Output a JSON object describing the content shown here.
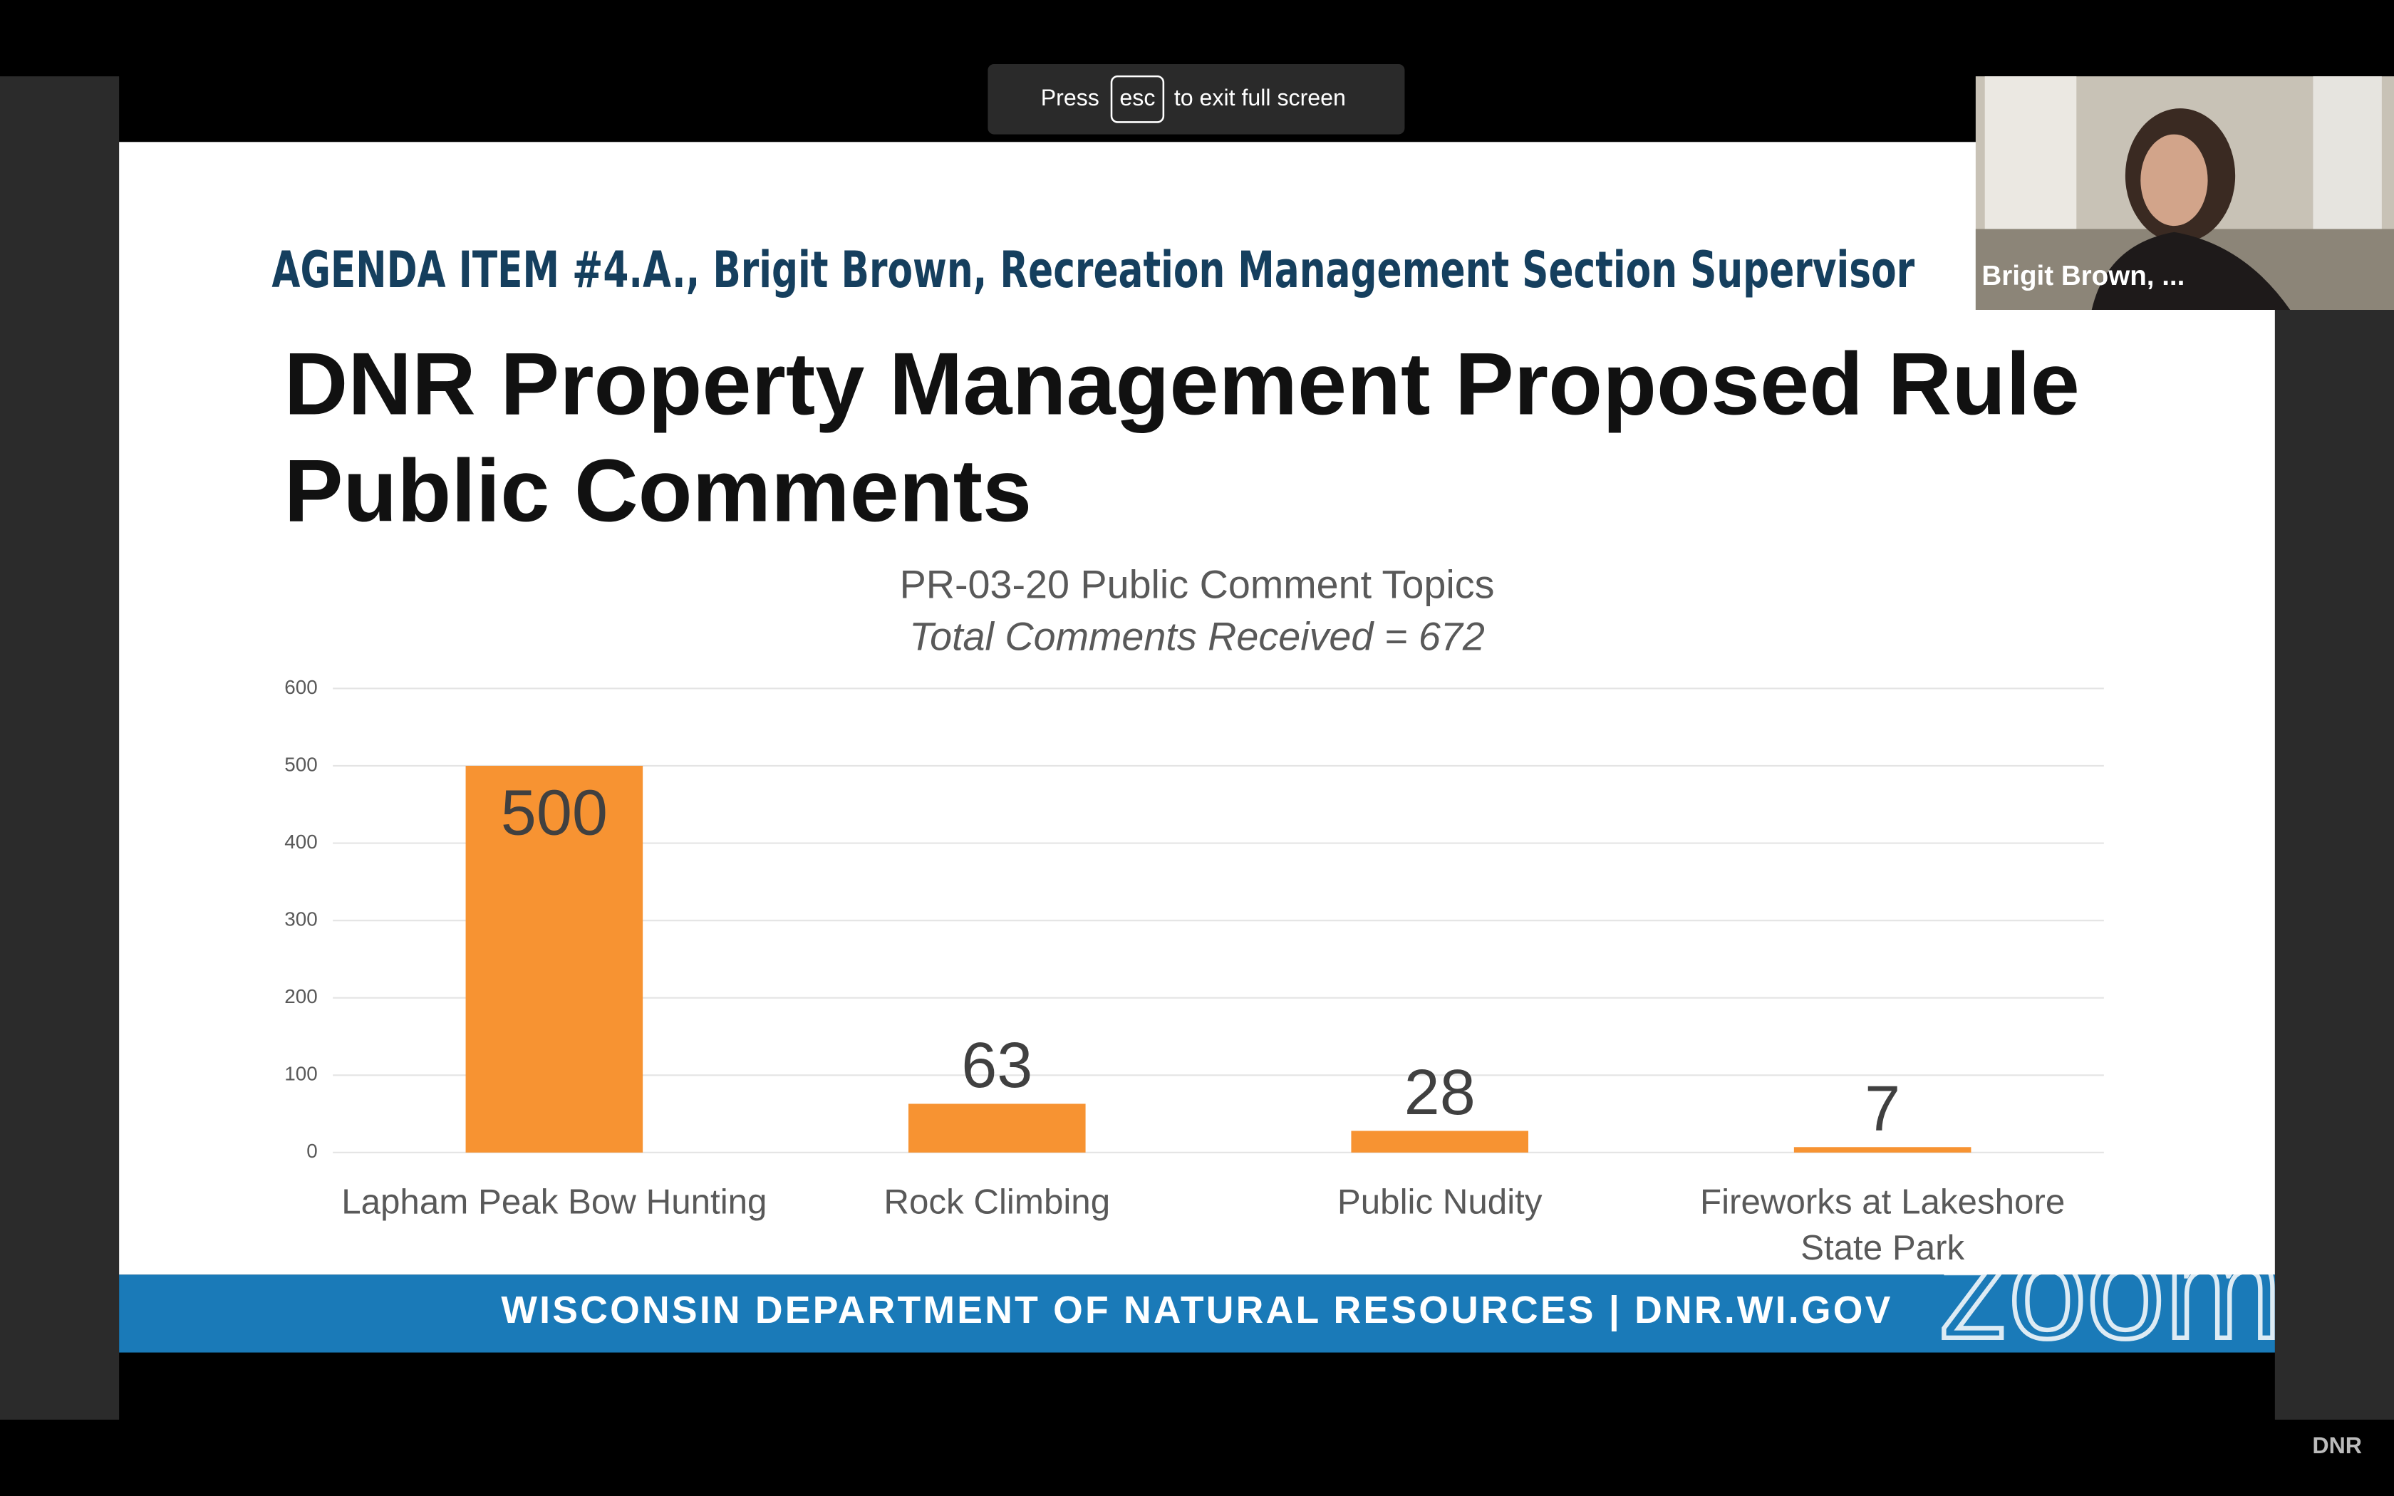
{
  "fullscreen_notice": {
    "before": "Press",
    "key": "esc",
    "after": "to exit full screen"
  },
  "video_tile": {
    "name": "Brigit Brown, ..."
  },
  "slide": {
    "header": "AGENDA ITEM #4.A., Brigit Brown, Recreation Management Section Supervisor",
    "title_lines": [
      "DNR Property Management Proposed Rule",
      "Public Comments"
    ],
    "footer": "WISCONSIN DEPARTMENT OF NATURAL RESOURCES | DNR.WI.GOV"
  },
  "chart_data": {
    "type": "bar",
    "title": "PR-03-20 Public Comment Topics",
    "subtitle": "Total Comments Received = 672",
    "categories": [
      "Lapham Peak Bow Hunting",
      "Rock Climbing",
      "Public Nudity",
      "Fireworks at Lakeshore State Park"
    ],
    "values": [
      500,
      63,
      28,
      7
    ],
    "color": "#f79332",
    "ylim": [
      0,
      600
    ],
    "yticks": [
      0,
      100,
      200,
      300,
      400,
      500,
      600
    ],
    "grid": true
  },
  "watermark": "zoom",
  "corner_label": "DNR"
}
